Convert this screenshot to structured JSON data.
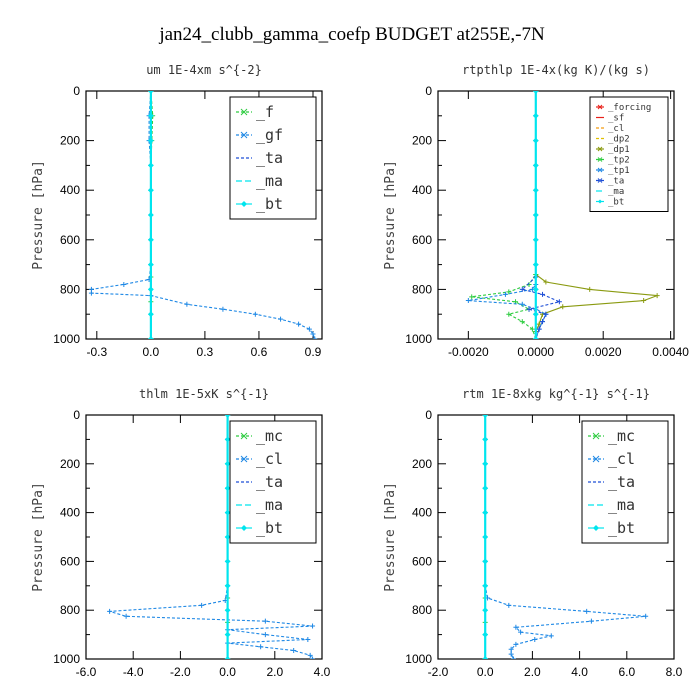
{
  "figure_title": "jan24_clubb_gamma_coefp  BUDGET at255E,-7N",
  "colors": {
    "green": "#2ecc40",
    "green_dark": "#1a9a2a",
    "cyan": "#00e5ee",
    "blue": "#1f4fd6",
    "mid_blue": "#1e88e5",
    "red": "#e8201a",
    "orange": "#f39c12",
    "yellow": "#e0c000",
    "olive": "#8a9a10"
  },
  "chart_data": [
    {
      "type": "line",
      "title": "um  1E-4xm s^{-2}",
      "ylabel": "Pressure [hPa]",
      "xlim": [
        -0.36,
        0.95
      ],
      "ylim": [
        1000,
        0
      ],
      "xticks": [
        "-0.3",
        "0.0",
        "0.3",
        "0.6",
        "0.9"
      ],
      "xtick_values": [
        -0.3,
        0.0,
        0.3,
        0.6,
        0.9
      ],
      "yticks": [
        "0",
        "200",
        "400",
        "600",
        "800",
        "1000"
      ],
      "ytick_values": [
        0,
        200,
        400,
        600,
        800,
        1000
      ],
      "legend_style": "big",
      "legend_box": "top-right",
      "series": [
        {
          "name": "_f",
          "color": "green",
          "dash": "3,2",
          "marker": "cross",
          "x": [
            0.0,
            0.01,
            0.005,
            0.0,
            0.0,
            0.0,
            0.0,
            0.0,
            0.0,
            0.0,
            0.0,
            0.0,
            0.0
          ],
          "y": [
            0,
            100,
            200,
            300,
            400,
            500,
            600,
            700,
            750,
            800,
            850,
            900,
            1000
          ]
        },
        {
          "name": "_gf",
          "color": "mid_blue",
          "dash": "3,2",
          "marker": "cross",
          "x": [
            0.0,
            -0.01,
            -0.01,
            0.0,
            0.0,
            0.0,
            0.0,
            0.0,
            -0.01,
            -0.15,
            -0.33,
            -0.33,
            0.0,
            0.2,
            0.4,
            0.58,
            0.72,
            0.82,
            0.88,
            0.9,
            0.91
          ],
          "y": [
            0,
            100,
            200,
            300,
            400,
            500,
            600,
            700,
            760,
            780,
            800,
            815,
            825,
            860,
            880,
            900,
            920,
            940,
            960,
            980,
            1000
          ]
        },
        {
          "name": "_ta",
          "color": "blue",
          "dash": "3,2",
          "marker": "none",
          "x": [
            0.0,
            0.0,
            0.0
          ],
          "y": [
            0,
            500,
            1000
          ]
        },
        {
          "name": "_ma",
          "color": "cyan",
          "dash": "6,3",
          "marker": "none",
          "x": [
            0.0,
            0.0,
            0.0
          ],
          "y": [
            0,
            500,
            1000
          ]
        },
        {
          "name": "_bt",
          "color": "cyan",
          "dash": "",
          "marker": "diamond",
          "x": [
            0.0,
            0.0,
            0.0,
            0.0,
            0.0,
            0.0,
            0.0,
            0.0,
            0.0,
            0.0,
            0.0
          ],
          "y": [
            0,
            100,
            200,
            300,
            400,
            500,
            600,
            700,
            800,
            900,
            1000
          ]
        }
      ]
    },
    {
      "type": "line",
      "title": "rtpthlp  1E-4x(kg K)/(kg s)",
      "ylabel": "Pressure [hPa]",
      "xlim": [
        -0.0029,
        0.0041
      ],
      "ylim": [
        1000,
        0
      ],
      "xticks": [
        "-0.0020",
        "0.0000",
        "0.0020",
        "0.0040"
      ],
      "xtick_values": [
        -0.002,
        0.0,
        0.002,
        0.004
      ],
      "yticks": [
        "0",
        "200",
        "400",
        "600",
        "800",
        "1000"
      ],
      "ytick_values": [
        0,
        200,
        400,
        600,
        800,
        1000
      ],
      "legend_style": "small",
      "legend_box": "top-right",
      "series": [
        {
          "name": "_forcing",
          "color": "red",
          "dash": "",
          "marker": "cross",
          "x": [
            0.0,
            0.0,
            0.0,
            0.0,
            0.0,
            0.0,
            0.0,
            0.0,
            0.0,
            0.0,
            0.0
          ],
          "y": [
            0,
            100,
            200,
            300,
            400,
            500,
            600,
            700,
            800,
            900,
            1000
          ]
        },
        {
          "name": "_sf",
          "color": "red",
          "dash": "",
          "marker": "none",
          "x": [
            0.0,
            0.0
          ],
          "y": [
            0,
            1000
          ]
        },
        {
          "name": "_cl",
          "color": "orange",
          "dash": "3,2",
          "marker": "none",
          "x": [
            0.0,
            0.0
          ],
          "y": [
            0,
            1000
          ]
        },
        {
          "name": "_dp2",
          "color": "yellow",
          "dash": "3,2",
          "marker": "none",
          "x": [
            0.0,
            0.0
          ],
          "y": [
            0,
            1000
          ]
        },
        {
          "name": "_dp1",
          "color": "olive",
          "dash": "",
          "marker": "cross",
          "x": [
            0.0,
            0.0,
            0.0,
            0.0003,
            0.0016,
            0.0036,
            0.0032,
            0.0008,
            0.0002,
            0.0001,
            0.0,
            0.0
          ],
          "y": [
            0,
            500,
            740,
            770,
            800,
            825,
            845,
            870,
            900,
            940,
            970,
            1000
          ]
        },
        {
          "name": "_tp2",
          "color": "green",
          "dash": "3,2",
          "marker": "cross",
          "x": [
            0.0,
            0.0,
            -0.0002,
            -0.0008,
            -0.0019,
            -0.0006,
            -0.0002,
            -0.0008,
            -0.0004,
            -0.0001,
            0.0
          ],
          "y": [
            0,
            740,
            780,
            810,
            830,
            850,
            880,
            900,
            930,
            960,
            1000
          ]
        },
        {
          "name": "_tp1",
          "color": "mid_blue",
          "dash": "3,2",
          "marker": "cross",
          "x": [
            0.0,
            0.0,
            -0.0001,
            -0.0009,
            -0.002,
            -0.0004,
            0.0,
            0.0003,
            0.0002,
            0.0001,
            0.0
          ],
          "y": [
            0,
            780,
            800,
            820,
            845,
            860,
            880,
            900,
            930,
            960,
            1000
          ]
        },
        {
          "name": "_ta",
          "color": "blue",
          "dash": "3,2",
          "marker": "cross",
          "x": [
            0.0,
            0.0,
            -0.0004,
            0.0002,
            0.0007,
            -0.0002,
            0.0003,
            0.0002,
            0.0001,
            0.0
          ],
          "y": [
            0,
            750,
            800,
            820,
            850,
            880,
            900,
            930,
            960,
            1000
          ]
        },
        {
          "name": "_ma",
          "color": "cyan",
          "dash": "6,3",
          "marker": "none",
          "x": [
            0.0,
            0.0
          ],
          "y": [
            0,
            1000
          ]
        },
        {
          "name": "_bt",
          "color": "cyan",
          "dash": "",
          "marker": "diamond",
          "x": [
            0.0,
            0.0,
            0.0,
            0.0,
            0.0,
            0.0,
            0.0,
            0.0,
            0.0,
            0.0,
            0.0
          ],
          "y": [
            0,
            100,
            200,
            300,
            400,
            500,
            600,
            700,
            800,
            900,
            1000
          ]
        }
      ]
    },
    {
      "type": "line",
      "title": "thlm  1E-5xK s^{-1}",
      "ylabel": "Pressure [hPa]",
      "xlim": [
        -6.0,
        4.0
      ],
      "ylim": [
        1000,
        0
      ],
      "xticks": [
        "-6.0",
        "-4.0",
        "-2.0",
        "0.0",
        "2.0",
        "4.0"
      ],
      "xtick_values": [
        -6,
        -4,
        -2,
        0,
        2,
        4
      ],
      "yticks": [
        "0",
        "200",
        "400",
        "600",
        "800",
        "1000"
      ],
      "ytick_values": [
        0,
        200,
        400,
        600,
        800,
        1000
      ],
      "legend_style": "big",
      "legend_box": "top-right",
      "series": [
        {
          "name": "_mc",
          "color": "green",
          "dash": "3,2",
          "marker": "cross",
          "x": [
            0.0,
            0.0,
            0.0,
            0.0,
            0.0,
            0.0,
            0.0,
            0.0,
            0.0,
            0.0,
            0.0,
            0.0,
            0.0
          ],
          "y": [
            0,
            100,
            200,
            300,
            400,
            500,
            600,
            700,
            750,
            800,
            850,
            900,
            1000
          ]
        },
        {
          "name": "_cl",
          "color": "mid_blue",
          "dash": "3,2",
          "marker": "cross",
          "x": [
            0.0,
            0.0,
            0.0,
            0.0,
            0.0,
            0.0,
            0.0,
            0.0,
            -0.1,
            -1.1,
            -5.0,
            -4.3,
            1.6,
            3.6,
            0.0,
            1.6,
            3.4,
            0.0,
            1.4,
            2.8,
            3.5,
            3.6
          ],
          "y": [
            0,
            100,
            200,
            300,
            400,
            500,
            600,
            700,
            760,
            780,
            805,
            825,
            845,
            865,
            880,
            900,
            920,
            935,
            950,
            965,
            985,
            1000
          ]
        },
        {
          "name": "_ta",
          "color": "blue",
          "dash": "3,2",
          "marker": "none",
          "x": [
            0.0,
            0.0
          ],
          "y": [
            0,
            1000
          ]
        },
        {
          "name": "_ma",
          "color": "cyan",
          "dash": "6,3",
          "marker": "none",
          "x": [
            0.0,
            0.0
          ],
          "y": [
            0,
            1000
          ]
        },
        {
          "name": "_bt",
          "color": "cyan",
          "dash": "",
          "marker": "diamond",
          "x": [
            0.0,
            0.0,
            0.0,
            0.0,
            0.0,
            0.0,
            0.0,
            0.0,
            0.0,
            0.0,
            0.0
          ],
          "y": [
            0,
            100,
            200,
            300,
            400,
            500,
            600,
            700,
            800,
            900,
            1000
          ]
        }
      ]
    },
    {
      "type": "line",
      "title": "rtm  1E-8xkg kg^{-1} s^{-1}",
      "ylabel": "Pressure [hPa]",
      "xlim": [
        -2.0,
        8.0
      ],
      "ylim": [
        1000,
        0
      ],
      "xticks": [
        "-2.0",
        "0.0",
        "2.0",
        "4.0",
        "6.0",
        "8.0"
      ],
      "xtick_values": [
        -2,
        0,
        2,
        4,
        6,
        8
      ],
      "yticks": [
        "0",
        "200",
        "400",
        "600",
        "800",
        "1000"
      ],
      "ytick_values": [
        0,
        200,
        400,
        600,
        800,
        1000
      ],
      "legend_style": "big",
      "legend_box": "top-right",
      "series": [
        {
          "name": "_mc",
          "color": "green",
          "dash": "3,2",
          "marker": "cross",
          "x": [
            0.0,
            0.0,
            0.0,
            0.0,
            0.0,
            0.0,
            0.0,
            0.0,
            0.0,
            0.0,
            0.0,
            0.0,
            0.0
          ],
          "y": [
            0,
            100,
            200,
            300,
            400,
            500,
            600,
            700,
            750,
            800,
            850,
            900,
            1000
          ]
        },
        {
          "name": "_cl",
          "color": "mid_blue",
          "dash": "3,2",
          "marker": "cross",
          "x": [
            0.0,
            0.0,
            0.0,
            0.0,
            0.0,
            0.0,
            0.0,
            0.0,
            0.1,
            1.0,
            4.3,
            6.8,
            4.5,
            1.3,
            1.5,
            2.8,
            2.1,
            1.3,
            1.1,
            1.1,
            1.2
          ],
          "y": [
            0,
            100,
            200,
            300,
            400,
            500,
            600,
            700,
            750,
            780,
            805,
            825,
            845,
            870,
            890,
            905,
            920,
            940,
            960,
            980,
            1000
          ]
        },
        {
          "name": "_ta",
          "color": "blue",
          "dash": "3,2",
          "marker": "none",
          "x": [
            0.0,
            0.0
          ],
          "y": [
            0,
            1000
          ]
        },
        {
          "name": "_ma",
          "color": "cyan",
          "dash": "6,3",
          "marker": "none",
          "x": [
            0.0,
            0.0
          ],
          "y": [
            0,
            1000
          ]
        },
        {
          "name": "_bt",
          "color": "cyan",
          "dash": "",
          "marker": "diamond",
          "x": [
            0.0,
            0.0,
            0.0,
            0.0,
            0.0,
            0.0,
            0.0,
            0.0,
            0.0,
            0.0,
            0.0
          ],
          "y": [
            0,
            100,
            200,
            300,
            400,
            500,
            600,
            700,
            800,
            900,
            1000
          ]
        }
      ]
    }
  ]
}
